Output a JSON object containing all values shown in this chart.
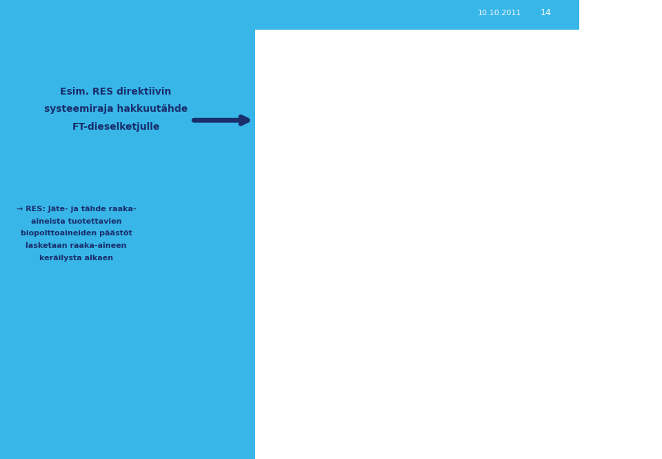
{
  "bg_color": "#38b6e8",
  "white_bg": "#ffffff",
  "header_date": "10.10.2011",
  "header_page": "14",
  "title_line1": "Esim. RES direktiivin",
  "title_line2": "systeemiraja hakkuutähde",
  "title_line3": "FT-dieselketjulle",
  "subtitle_line1": "→ RES: Jäte- ja tähde raaka-",
  "subtitle_line2": "aineista tuotettavien",
  "subtitle_line3": "biopolttoaineiden päästöt",
  "subtitle_line4": "lasketaan raaka-aineen",
  "subtitle_line5": "keräilysta alkaen",
  "BLUE_ARROW": "#2e6da4",
  "RED_ARROW": "#c00000",
  "MEDIUM_BLUE": "#2e6da4",
  "DARK_BLUE": "#1f3864",
  "LIGHT_BOX_FC": "#dce6f1",
  "DASHED_BOX_FC": "#e8f0f8",
  "DASHED_BOX_EC": "#7a9cc8",
  "MED_BOX_FC": "#c5d9ed",
  "MED_BOX_EC": "#2e6da4",
  "DARK_BOX_EC": "#1f3864"
}
